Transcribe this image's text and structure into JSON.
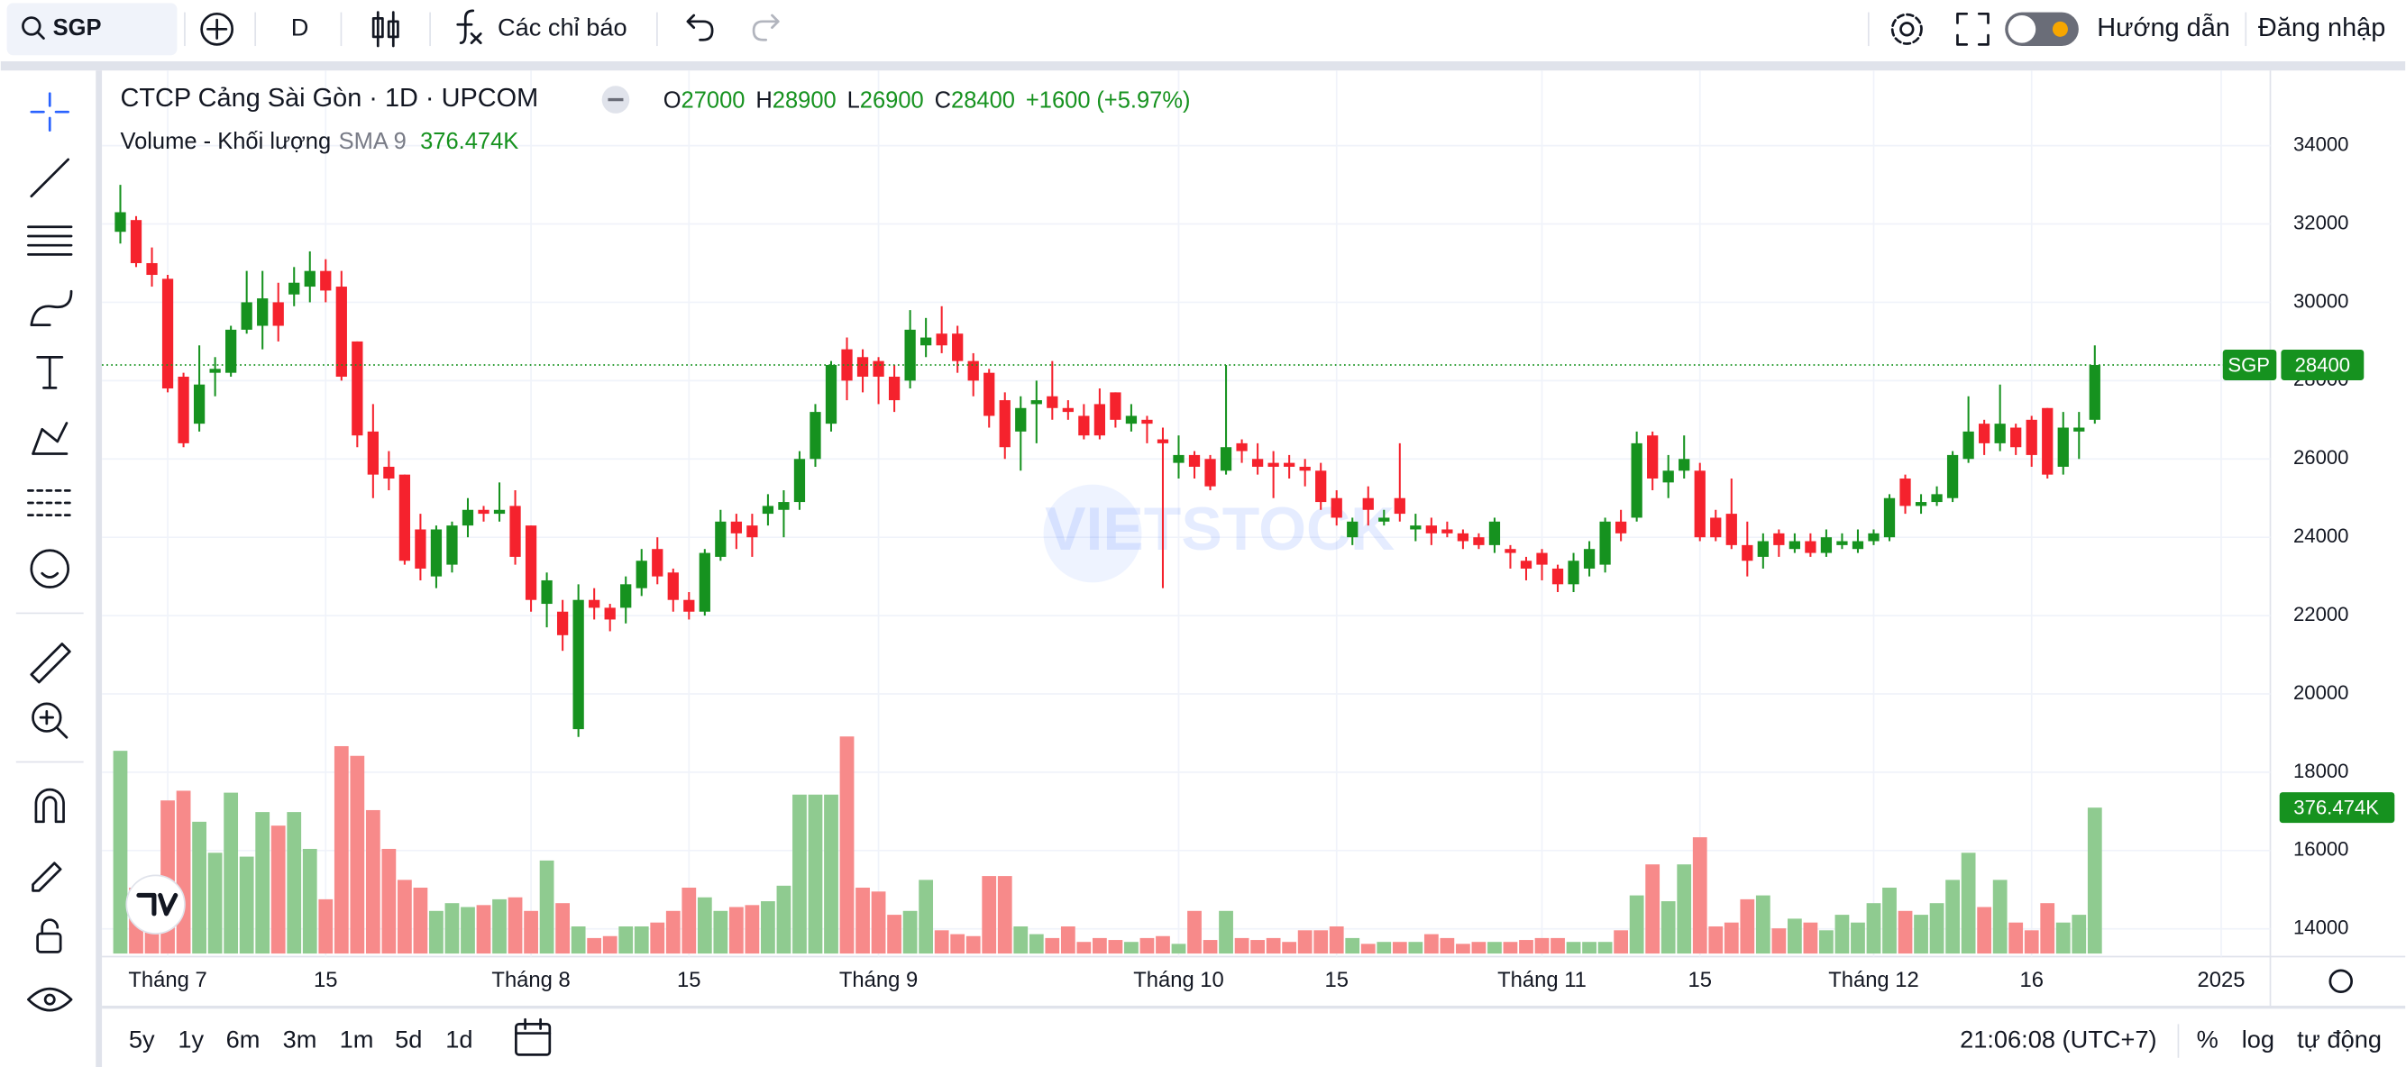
{
  "toolbar": {
    "symbol": "SGP",
    "interval": "D",
    "indicators": "Các chỉ báo",
    "guide": "Hướng dẫn",
    "login": "Đăng nhập"
  },
  "chart_data": {
    "type": "candlestick",
    "title": "CTCP Cảng Sài Gòn · 1D · UPCOM",
    "ohlc_legend": [
      {
        "key": "O",
        "value": 27000
      },
      {
        "key": "H",
        "value": 28900
      },
      {
        "key": "L",
        "value": 26900
      },
      {
        "key": "C",
        "value": 28400
      }
    ],
    "change": {
      "value": 1600,
      "label": "+1600"
    },
    "change_pct": {
      "value": 5.97,
      "label": "(+5.97%)"
    },
    "watermark": "VIETSTOCK",
    "categories": [
      null,
      null,
      null,
      "Tháng 7",
      null,
      null,
      null,
      null,
      null,
      null,
      null,
      null,
      null,
      "15",
      null,
      null,
      null,
      null,
      null,
      null,
      null,
      null,
      null,
      null,
      null,
      null,
      "Tháng 8",
      null,
      null,
      null,
      null,
      null,
      null,
      null,
      null,
      null,
      "15",
      null,
      null,
      null,
      null,
      null,
      null,
      null,
      null,
      null,
      null,
      null,
      "Tháng 9",
      null,
      null,
      null,
      null,
      null,
      null,
      null,
      null,
      null,
      null,
      null,
      null,
      null,
      null,
      null,
      null,
      null,
      null,
      "Tháng 10",
      null,
      null,
      null,
      null,
      null,
      null,
      null,
      null,
      null,
      "15",
      null,
      null,
      null,
      null,
      null,
      null,
      null,
      null,
      null,
      null,
      null,
      null,
      "Tháng 11",
      null,
      null,
      null,
      null,
      null,
      null,
      null,
      null,
      null,
      "15",
      null,
      null,
      null,
      null,
      null,
      null,
      null,
      null,
      null,
      null,
      "Tháng 12",
      null,
      null,
      null,
      null,
      null,
      null,
      null,
      null,
      null,
      "16",
      null,
      null,
      null,
      null,
      null,
      null,
      null,
      null,
      null,
      null,
      null,
      "2025",
      null,
      null,
      null
    ],
    "open": [
      31800,
      32100,
      31000,
      30600,
      28100,
      26900,
      28200,
      28200,
      29300,
      29400,
      30000,
      30200,
      30400,
      30800,
      30400,
      29000,
      26700,
      25800,
      25600,
      24200,
      23000,
      23300,
      24300,
      24700,
      24600,
      24800,
      24300,
      22300,
      22100,
      19100,
      22400,
      22200,
      22200,
      22700,
      23700,
      23100,
      22400,
      22100,
      23500,
      24400,
      24300,
      24600,
      24700,
      24900,
      26000,
      26900,
      28800,
      28600,
      28500,
      28100,
      28000,
      28900,
      29200,
      29200,
      28500,
      28200,
      27500,
      26700,
      27400,
      27600,
      27300,
      27100,
      27400,
      27700,
      26900,
      27000,
      26500,
      25900,
      26100,
      26000,
      25700,
      26400,
      26000,
      25900,
      25900,
      25800,
      25700,
      25000,
      24000,
      25000,
      24400,
      25000,
      24200,
      24300,
      24200,
      24100,
      24000,
      23800,
      23700,
      23400,
      23600,
      23200,
      22800,
      23200,
      23300,
      24400,
      24500,
      26600,
      25400,
      25700,
      25700,
      24500,
      24600,
      23800,
      23500,
      24100,
      23700,
      23900,
      23600,
      23800,
      23700,
      23900,
      24000,
      25500,
      24800,
      24900,
      25000,
      26000,
      26900,
      26400,
      26800,
      27000,
      27300,
      25800,
      26700,
      27000,
      null,
      null,
      null,
      null,
      null,
      null,
      null,
      null,
      null,
      null,
      null
    ],
    "high": [
      33000,
      32200,
      31400,
      30700,
      28200,
      28900,
      28600,
      29400,
      30800,
      30800,
      30500,
      30900,
      31300,
      31100,
      30800,
      29000,
      27400,
      26200,
      25600,
      24600,
      24300,
      24400,
      25000,
      24800,
      25400,
      25200,
      24300,
      23100,
      22400,
      22800,
      22700,
      22300,
      23000,
      23700,
      24000,
      23200,
      22600,
      23700,
      24700,
      24600,
      24600,
      25100,
      25200,
      26200,
      27400,
      28500,
      29100,
      28800,
      28600,
      28400,
      29800,
      29600,
      29900,
      29400,
      28700,
      28300,
      27700,
      27600,
      28000,
      28500,
      27500,
      27400,
      27800,
      27700,
      27400,
      27100,
      26800,
      26600,
      26200,
      26100,
      28400,
      26500,
      26400,
      26200,
      26100,
      26000,
      25900,
      25200,
      24500,
      25300,
      24700,
      26400,
      24600,
      24500,
      24400,
      24200,
      24100,
      24500,
      23800,
      23500,
      23700,
      23300,
      23600,
      23900,
      24500,
      24700,
      26700,
      26700,
      26100,
      26600,
      25900,
      24700,
      25500,
      24400,
      24100,
      24200,
      24100,
      24100,
      24200,
      24100,
      24200,
      24200,
      25100,
      25600,
      25100,
      25300,
      26200,
      27600,
      27000,
      27900,
      26900,
      27100,
      27300,
      27200,
      27200,
      28900,
      null,
      null,
      null,
      null,
      null,
      null,
      null,
      null,
      null,
      null,
      null
    ],
    "low": [
      31500,
      30900,
      30400,
      27700,
      26300,
      26700,
      27600,
      28100,
      29200,
      28800,
      29000,
      29900,
      30000,
      30000,
      28000,
      26300,
      25000,
      25200,
      23300,
      22900,
      22700,
      23100,
      24000,
      24400,
      24400,
      23300,
      22100,
      21700,
      21100,
      18900,
      21900,
      21600,
      21800,
      22500,
      22800,
      22100,
      21900,
      22000,
      23400,
      23700,
      23500,
      24300,
      24000,
      24700,
      25800,
      26700,
      27500,
      27700,
      27400,
      27200,
      27800,
      28600,
      28700,
      28200,
      27600,
      26800,
      26000,
      25700,
      26400,
      27000,
      27000,
      26500,
      26500,
      26800,
      26700,
      26400,
      22700,
      25500,
      25500,
      25200,
      25600,
      25900,
      25600,
      25000,
      25500,
      25300,
      24700,
      24300,
      23800,
      24300,
      24300,
      24400,
      23900,
      23800,
      24000,
      23700,
      23700,
      23600,
      23200,
      22900,
      22900,
      22600,
      22600,
      23000,
      23100,
      23900,
      24400,
      25200,
      25000,
      25500,
      23900,
      23900,
      23700,
      23000,
      23200,
      23500,
      23600,
      23500,
      23500,
      23700,
      23600,
      23800,
      23900,
      24600,
      24600,
      24800,
      24900,
      25900,
      26100,
      26200,
      26100,
      25800,
      25500,
      25600,
      26000,
      26900,
      null,
      null,
      null,
      null,
      null,
      null,
      null,
      null,
      null,
      null,
      null
    ],
    "close": [
      32300,
      31000,
      30700,
      27800,
      26400,
      27900,
      28300,
      29300,
      30000,
      30100,
      29400,
      30500,
      30800,
      30300,
      28100,
      26600,
      25600,
      25500,
      23400,
      23200,
      24200,
      24300,
      24700,
      24600,
      24700,
      23500,
      22400,
      22900,
      21500,
      22400,
      22200,
      21900,
      22800,
      23400,
      23000,
      22400,
      22100,
      23600,
      24400,
      24100,
      24000,
      24800,
      24900,
      26000,
      27200,
      28400,
      28000,
      28100,
      28100,
      27500,
      29300,
      29100,
      28900,
      28500,
      28000,
      27100,
      26300,
      27300,
      27500,
      27300,
      27200,
      26600,
      26600,
      27000,
      27100,
      26900,
      26400,
      26100,
      25800,
      25300,
      26300,
      26200,
      25800,
      25800,
      25800,
      25700,
      24900,
      24500,
      24400,
      24700,
      24500,
      24600,
      24300,
      24100,
      24100,
      23900,
      23800,
      24400,
      23600,
      23200,
      23300,
      22800,
      23400,
      23700,
      24400,
      24100,
      26400,
      25500,
      25700,
      26000,
      24000,
      24000,
      23800,
      23400,
      23900,
      23800,
      23900,
      23600,
      24000,
      23900,
      23900,
      24100,
      25000,
      24800,
      24900,
      25100,
      26100,
      26700,
      26400,
      26900,
      26300,
      26100,
      25600,
      26800,
      26800,
      28400,
      null,
      null,
      null,
      null,
      null,
      null,
      null,
      null,
      null,
      null,
      null
    ],
    "up_color": "#16921f",
    "down_color": "#f5222d",
    "volume": {
      "name": "Volume - Khối lượng",
      "sma_label": "SMA 9",
      "last": {
        "value": 376.474,
        "label": "376.474K"
      },
      "values": [
        523,
        170,
        175,
        395,
        420,
        340,
        260,
        415,
        250,
        365,
        330,
        365,
        270,
        140,
        535,
        510,
        370,
        270,
        190,
        170,
        110,
        130,
        120,
        125,
        140,
        145,
        110,
        240,
        130,
        70,
        40,
        45,
        70,
        70,
        80,
        110,
        170,
        145,
        110,
        120,
        125,
        135,
        175,
        410,
        410,
        410,
        560,
        170,
        160,
        100,
        110,
        190,
        60,
        50,
        45,
        200,
        200,
        70,
        50,
        40,
        70,
        30,
        40,
        35,
        30,
        40,
        45,
        25,
        110,
        35,
        110,
        40,
        35,
        40,
        30,
        60,
        60,
        70,
        40,
        25,
        30,
        30,
        30,
        50,
        40,
        25,
        30,
        30,
        30,
        35,
        40,
        40,
        30,
        30,
        30,
        60,
        150,
        230,
        135,
        230,
        300,
        70,
        80,
        140,
        150,
        65,
        90,
        80,
        60,
        100,
        80,
        130,
        170,
        110,
        100,
        130,
        190,
        260,
        120,
        190,
        80,
        60,
        130,
        80,
        100,
        376.474,
        null,
        null,
        null,
        null,
        null,
        null,
        null,
        null,
        null,
        null,
        null
      ],
      "up_color": "#8fcb90",
      "down_color": "#f78a8a"
    },
    "last_price": {
      "symbol": "SGP",
      "value": 28400
    },
    "ylim": [
      13370,
      35840
    ],
    "yticks": [
      14000,
      16000,
      18000,
      20000,
      22000,
      24000,
      26000,
      28000,
      30000,
      32000,
      34000
    ],
    "y2lim": [
      0,
      2270
    ],
    "grid": true
  },
  "bottom_bar": {
    "ranges": [
      "5y",
      "1y",
      "6m",
      "3m",
      "1m",
      "5d",
      "1d"
    ],
    "time": "21:06:08 (UTC+7)",
    "percent": "%",
    "log": "log",
    "auto": "tự động"
  }
}
